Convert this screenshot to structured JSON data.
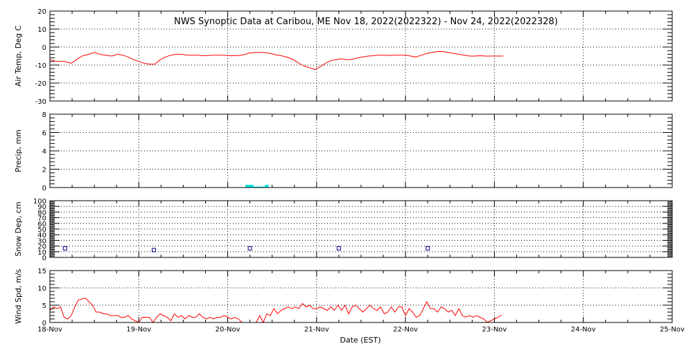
{
  "title": "NWS Synoptic Data at Caribou, ME   Nov 18, 2022(2022322) - Nov 24, 2022(2022328)",
  "xlabel": "Date (EST)",
  "x_tick_labels": [
    "18-Nov",
    "19-Nov",
    "20-Nov",
    "21-Nov",
    "22-Nov",
    "23-Nov",
    "24-Nov",
    "25-Nov"
  ],
  "x_range_days": [
    0,
    7
  ],
  "colors": {
    "temp": "#ff0000",
    "precip": "#00e5e5",
    "snow": "#00008b",
    "wind": "#ff0000"
  },
  "chart_data": [
    {
      "type": "line",
      "ylabel": "Air Temp, Deg C",
      "ylim": [
        -30,
        20
      ],
      "yticks": [
        -30,
        -20,
        -10,
        0,
        10,
        20
      ],
      "grid": true,
      "series": [
        {
          "x": [
            0,
            0.08,
            0.16,
            0.24,
            0.3,
            0.36,
            0.44,
            0.5,
            0.56,
            0.62,
            0.7,
            0.76,
            0.82,
            0.88,
            0.94,
            1.0,
            1.06,
            1.12,
            1.18,
            1.24,
            1.3,
            1.36,
            1.42,
            1.48,
            1.54,
            1.6,
            1.66,
            1.72,
            1.78,
            1.84,
            1.9,
            1.96,
            2.02,
            2.08,
            2.14,
            2.2,
            2.26,
            2.32,
            2.38,
            2.44,
            2.5,
            2.56,
            2.62,
            2.68,
            2.74,
            2.8,
            2.86,
            2.92,
            2.98,
            3.04,
            3.1,
            3.16,
            3.22,
            3.28,
            3.34,
            3.4,
            3.46,
            3.52,
            3.58,
            3.64,
            3.7,
            3.76,
            3.82,
            3.88,
            3.94,
            4.0,
            4.06,
            4.12,
            4.18,
            4.24,
            4.3,
            4.36,
            4.42,
            4.48,
            4.54,
            4.6,
            4.66,
            4.72,
            4.78,
            4.84,
            4.9,
            4.96,
            5.02,
            5.08,
            5.1
          ],
          "values": [
            -7,
            -8,
            -8,
            -9,
            -7,
            -5,
            -4,
            -3,
            -4,
            -4.5,
            -5,
            -4,
            -4.5,
            -5.5,
            -7,
            -8,
            -9,
            -9.5,
            -9.5,
            -7,
            -5.5,
            -4.5,
            -4,
            -4,
            -4.5,
            -4.5,
            -4.5,
            -4.8,
            -4.7,
            -4.5,
            -4.5,
            -4.5,
            -4.8,
            -4.8,
            -4.6,
            -4,
            -3.2,
            -3,
            -3,
            -3.2,
            -3.8,
            -4.5,
            -5,
            -5.8,
            -7,
            -9,
            -10.5,
            -11.5,
            -12.5,
            -11,
            -9,
            -7.5,
            -7,
            -6.5,
            -7,
            -6.8,
            -6,
            -5.5,
            -5,
            -4.8,
            -4.5,
            -4.5,
            -4.7,
            -4.5,
            -4.5,
            -4.5,
            -5,
            -5.5,
            -4.5,
            -3.5,
            -3,
            -2.5,
            -2.5,
            -3,
            -3.5,
            -4,
            -4.5,
            -5,
            -5,
            -4.8,
            -5,
            -5,
            -5,
            -5,
            -5
          ]
        }
      ]
    },
    {
      "type": "bar",
      "ylabel": "Precip, mm",
      "ylim": [
        0,
        8
      ],
      "yticks": [
        0,
        2,
        4,
        6,
        8
      ],
      "grid": true,
      "bars": [
        {
          "x0": 2.2,
          "x1": 2.29,
          "value": 0.3
        },
        {
          "x0": 2.29,
          "x1": 2.42,
          "value": 0.1
        },
        {
          "x0": 2.42,
          "x1": 2.46,
          "value": 0.3
        }
      ]
    },
    {
      "type": "scatter",
      "ylabel": "Snow Dep, cm",
      "ylim": [
        0,
        100
      ],
      "yticks": [
        0,
        10,
        20,
        30,
        40,
        50,
        60,
        70,
        80,
        90,
        100
      ],
      "grid": true,
      "series": [
        {
          "x": [
            0.17,
            1.17,
            2.25,
            3.25,
            4.25
          ],
          "values": [
            16,
            13,
            16,
            16,
            16
          ]
        }
      ]
    },
    {
      "type": "line",
      "ylabel": "Wind Spd, m/s",
      "ylim": [
        0,
        15
      ],
      "yticks": [
        0,
        5,
        10,
        15
      ],
      "grid": true,
      "series": [
        {
          "x": [
            0,
            0.04,
            0.08,
            0.12,
            0.16,
            0.2,
            0.24,
            0.28,
            0.32,
            0.36,
            0.4,
            0.44,
            0.48,
            0.52,
            0.56,
            0.6,
            0.64,
            0.68,
            0.72,
            0.76,
            0.8,
            0.84,
            0.88,
            0.92,
            0.96,
            1.0,
            1.04,
            1.08,
            1.12,
            1.16,
            1.2,
            1.24,
            1.28,
            1.32,
            1.36,
            1.4,
            1.44,
            1.48,
            1.52,
            1.56,
            1.6,
            1.64,
            1.68,
            1.72,
            1.76,
            1.8,
            1.84,
            1.88,
            1.92,
            1.96,
            2.0,
            2.04,
            2.08,
            2.12,
            2.16,
            2.2,
            2.24,
            2.28,
            2.32,
            2.36,
            2.4,
            2.44,
            2.48,
            2.52,
            2.56,
            2.6,
            2.64,
            2.68,
            2.72,
            2.76,
            2.8,
            2.84,
            2.88,
            2.92,
            2.96,
            3.0,
            3.04,
            3.08,
            3.12,
            3.16,
            3.2,
            3.24,
            3.28,
            3.32,
            3.36,
            3.4,
            3.44,
            3.48,
            3.52,
            3.56,
            3.6,
            3.64,
            3.68,
            3.72,
            3.76,
            3.8,
            3.84,
            3.88,
            3.92,
            3.96,
            4.0,
            4.04,
            4.08,
            4.12,
            4.16,
            4.2,
            4.24,
            4.28,
            4.32,
            4.36,
            4.4,
            4.44,
            4.48,
            4.52,
            4.56,
            4.6,
            4.64,
            4.68,
            4.72,
            4.76,
            4.8,
            4.84,
            4.88,
            4.92,
            4.96,
            5.0,
            5.04,
            5.08
          ],
          "values": [
            3.5,
            4.5,
            4,
            4.5,
            1.5,
            1,
            2,
            4.5,
            6.5,
            6.8,
            7,
            6,
            5,
            3,
            3,
            2.5,
            2.5,
            2,
            2,
            2,
            1.5,
            1.5,
            2,
            1,
            0.5,
            0,
            1.5,
            1.5,
            1.5,
            0,
            1.5,
            2.5,
            2,
            1.5,
            0.5,
            2.5,
            1.5,
            2,
            1,
            2,
            1.5,
            1.5,
            2.5,
            1.5,
            1,
            1.5,
            1,
            1.5,
            1.5,
            2,
            1.5,
            1,
            1.5,
            1,
            0,
            0,
            0,
            0,
            0,
            2,
            0,
            2.5,
            2,
            4,
            2.5,
            3.5,
            4,
            4.5,
            4,
            4.5,
            4,
            5.5,
            4.5,
            5,
            4,
            4,
            4.5,
            4,
            3.5,
            4.5,
            3.5,
            5,
            3.5,
            5,
            2.5,
            4.5,
            5,
            4,
            3,
            4,
            5,
            4,
            3.5,
            4.5,
            2.5,
            3,
            4.5,
            3,
            4.5,
            4.5,
            2,
            4,
            3,
            1.5,
            2,
            4,
            6,
            4,
            4,
            3,
            4.5,
            4,
            3,
            3.5,
            2,
            4,
            2,
            1.5,
            2,
            1.5,
            2,
            1.5,
            1,
            0,
            0.5,
            1,
            1.5,
            2.2
          ]
        }
      ]
    }
  ]
}
